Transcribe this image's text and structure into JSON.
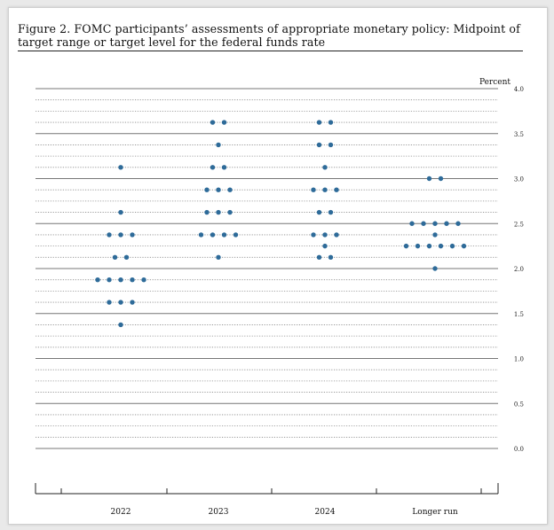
{
  "figure": {
    "caption": "Figure 2.  FOMC participants’ assessments of appropriate monetary policy:  Midpoint of target range or target level for the federal funds rate"
  },
  "chart_data": {
    "type": "scatter",
    "title": "",
    "xlabel": "",
    "ylabel": "Percent",
    "ylim": [
      0,
      4
    ],
    "yticks": [
      "4.0",
      "3.5",
      "3.0",
      "2.5",
      "2.0",
      "1.5",
      "1.0",
      "0.5",
      "0.0"
    ],
    "categories": [
      "2022",
      "2023",
      "2024",
      "Longer run"
    ],
    "dot_color": "#2e6b99",
    "grid": "dotted every 0.125, solid every 0.5",
    "series": [
      {
        "name": "",
        "category": "2022",
        "levels": [
          {
            "y": 3.125,
            "count": 1
          },
          {
            "y": 2.625,
            "count": 1
          },
          {
            "y": 2.375,
            "count": 3
          },
          {
            "y": 2.125,
            "count": 2
          },
          {
            "y": 1.875,
            "count": 5
          },
          {
            "y": 1.625,
            "count": 3
          },
          {
            "y": 1.375,
            "count": 1
          }
        ]
      },
      {
        "name": "",
        "category": "2023",
        "levels": [
          {
            "y": 3.625,
            "count": 2
          },
          {
            "y": 3.375,
            "count": 1
          },
          {
            "y": 3.125,
            "count": 2
          },
          {
            "y": 2.875,
            "count": 3
          },
          {
            "y": 2.625,
            "count": 3
          },
          {
            "y": 2.375,
            "count": 4
          },
          {
            "y": 2.125,
            "count": 1
          }
        ]
      },
      {
        "name": "",
        "category": "2024",
        "levels": [
          {
            "y": 3.625,
            "count": 2
          },
          {
            "y": 3.375,
            "count": 2
          },
          {
            "y": 3.125,
            "count": 1
          },
          {
            "y": 2.875,
            "count": 3
          },
          {
            "y": 2.625,
            "count": 2
          },
          {
            "y": 2.375,
            "count": 3
          },
          {
            "y": 2.25,
            "count": 1
          },
          {
            "y": 2.125,
            "count": 2
          }
        ]
      },
      {
        "name": "",
        "category": "Longer run",
        "levels": [
          {
            "y": 3.0,
            "count": 2
          },
          {
            "y": 2.5,
            "count": 5
          },
          {
            "y": 2.375,
            "count": 1
          },
          {
            "y": 2.25,
            "count": 6
          },
          {
            "y": 2.0,
            "count": 1
          }
        ]
      }
    ]
  }
}
